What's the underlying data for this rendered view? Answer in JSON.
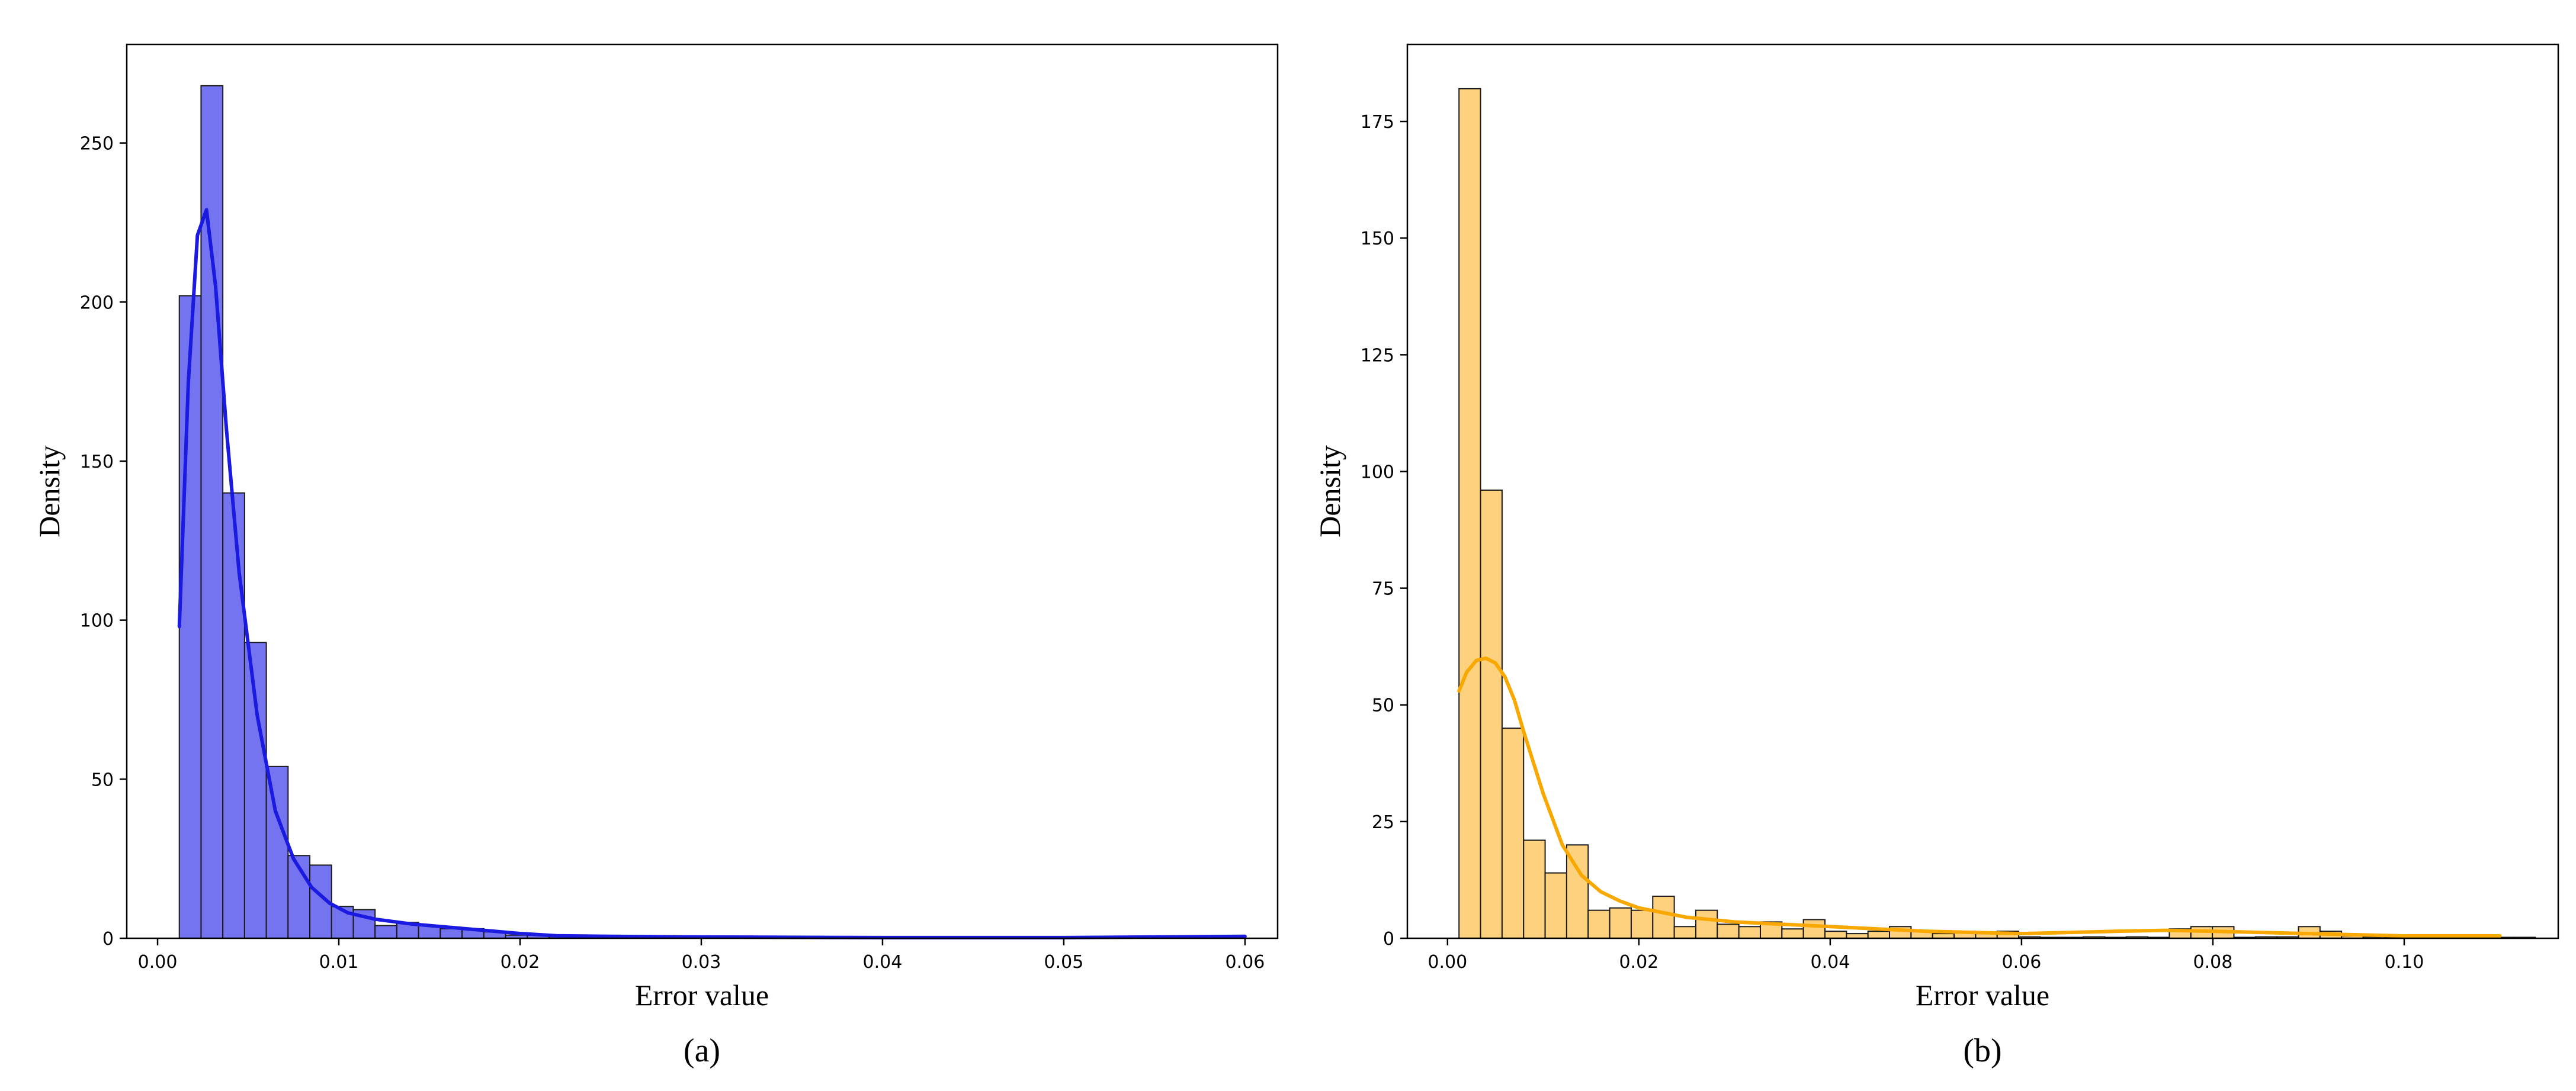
{
  "chart_data": [
    {
      "type": "histogram",
      "panel_label": "(a)",
      "xlabel": "Error value",
      "ylabel": "Density",
      "xlim": [
        -0.0017,
        0.0618
      ],
      "ylim": [
        0,
        281
      ],
      "xticks": [
        0.0,
        0.01,
        0.02,
        0.03,
        0.04,
        0.05,
        0.06
      ],
      "xtick_labels": [
        "0.00",
        "0.01",
        "0.02",
        "0.03",
        "0.04",
        "0.05",
        "0.06"
      ],
      "yticks": [
        0,
        50,
        100,
        150,
        200,
        250
      ],
      "ytick_labels": [
        "0",
        "50",
        "100",
        "150",
        "200",
        "250"
      ],
      "bar_color": "#7474f0",
      "line_color": "#1a1ae0",
      "bin_start": 0.0012,
      "bin_width": 0.0012,
      "values": [
        202,
        268,
        140,
        93,
        54,
        26,
        23,
        10,
        9,
        4,
        5,
        4,
        3,
        3,
        2,
        1,
        1,
        0.5,
        0.3,
        0.3,
        0.2,
        0.2,
        0.2,
        0.1,
        0.1,
        0.1,
        0.1,
        0.1,
        0.1,
        0.1,
        0.1,
        0.1,
        0.1,
        0.1,
        0.1,
        0.1,
        0.1,
        0.1,
        0.1,
        0.1,
        0.1,
        0.1,
        0.1,
        0.1,
        0.1,
        0.1,
        0.1,
        0.1,
        0.3
      ],
      "kde": {
        "x": [
          0.0012,
          0.0017,
          0.0022,
          0.0027,
          0.0032,
          0.0038,
          0.0045,
          0.0055,
          0.0065,
          0.0075,
          0.0085,
          0.0095,
          0.0105,
          0.012,
          0.014,
          0.016,
          0.018,
          0.02,
          0.022,
          0.025,
          0.03,
          0.04,
          0.05,
          0.06
        ],
        "y": [
          98,
          175,
          221,
          229,
          205,
          160,
          115,
          70,
          40,
          25,
          16,
          11,
          8,
          6,
          4.5,
          3.5,
          2.5,
          1.5,
          0.8,
          0.6,
          0.4,
          0.2,
          0.2,
          0.6
        ]
      }
    },
    {
      "type": "histogram",
      "panel_label": "(b)",
      "xlabel": "Error value",
      "ylabel": "Density",
      "xlim": [
        -0.0042,
        0.1161
      ],
      "ylim": [
        0,
        191.5
      ],
      "xticks": [
        0.0,
        0.02,
        0.04,
        0.06,
        0.08,
        0.1
      ],
      "xtick_labels": [
        "0.00",
        "0.02",
        "0.04",
        "0.06",
        "0.08",
        "0.10"
      ],
      "yticks": [
        0,
        25,
        50,
        75,
        100,
        125,
        150,
        175
      ],
      "ytick_labels": [
        "0",
        "25",
        "50",
        "75",
        "100",
        "125",
        "150",
        "175"
      ],
      "bar_color": "#fdd17e",
      "line_color": "#f8a800",
      "bin_start": 0.0012,
      "bin_width": 0.00225,
      "values": [
        182,
        96,
        45,
        21,
        14,
        20,
        6,
        6.5,
        6,
        9,
        2.5,
        6,
        3,
        2.5,
        3.5,
        2,
        4,
        1.5,
        1,
        1.5,
        2.5,
        1.5,
        1,
        1.5,
        1,
        1.5,
        0.3,
        0.2,
        0.2,
        0.3,
        0.2,
        0.3,
        0.2,
        2,
        2.5,
        2.5,
        0.2,
        0.3,
        0.3,
        2.5,
        1.5,
        0.5,
        0.3,
        0.2,
        0.2,
        0.3,
        0.3,
        0.2,
        0.2,
        0.2
      ],
      "kde": {
        "x": [
          0.0012,
          0.002,
          0.003,
          0.004,
          0.005,
          0.006,
          0.007,
          0.008,
          0.01,
          0.012,
          0.014,
          0.016,
          0.018,
          0.02,
          0.025,
          0.03,
          0.035,
          0.04,
          0.05,
          0.06,
          0.07,
          0.075,
          0.08,
          0.09,
          0.1,
          0.11
        ],
        "y": [
          53,
          57,
          59.5,
          60,
          59,
          56,
          51,
          44,
          31,
          20,
          13.5,
          10,
          8,
          6.5,
          4.5,
          3.5,
          3,
          2.5,
          1.5,
          1,
          1.5,
          1.7,
          1.5,
          1,
          0.5,
          0.5
        ]
      }
    }
  ]
}
